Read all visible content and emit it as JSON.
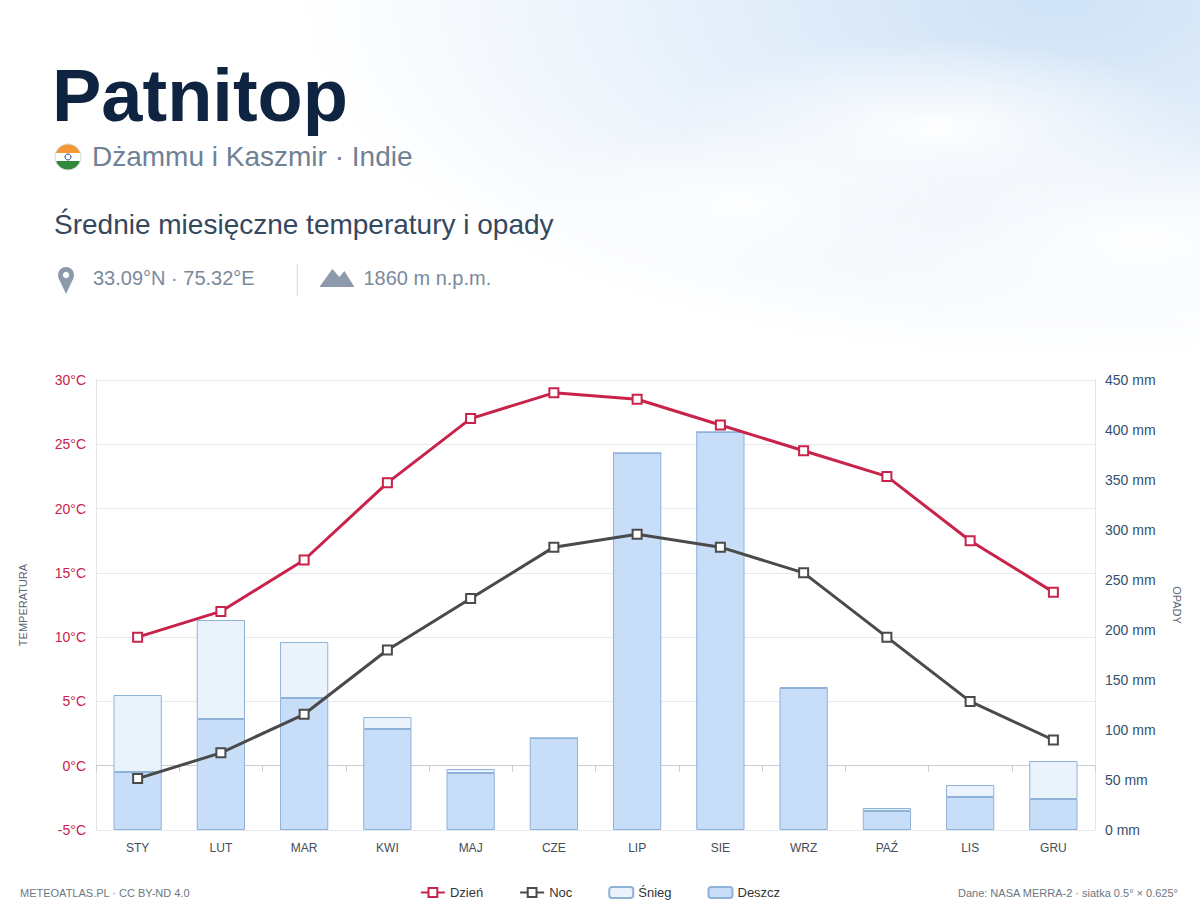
{
  "chart_data": {
    "type": "combo",
    "title": "Patnitop",
    "location": "Dżammu i Kaszmir · Indie",
    "subtitle": "Średnie miesięczne temperatury i opady",
    "coordinates": "33.09°N · 75.32°E",
    "elevation": "1860 m n.p.m.",
    "credit": "METEOATLAS.PL · CC BY-ND 4.0",
    "source": "Dane: NASA MERRA-2 · siatka 0.5° × 0.625°",
    "ylabel": "TEMPERATURA",
    "y2label": "OPADY",
    "categories": [
      "STY",
      "LUT",
      "MAR",
      "KWI",
      "MAJ",
      "CZE",
      "LIP",
      "SIE",
      "WRZ",
      "PAŹ",
      "LIS",
      "GRU"
    ],
    "series": [
      {
        "name": "Dzień",
        "type": "line",
        "color": "#c8234a",
        "marker": "square",
        "line_style": "solid",
        "values": [
          10,
          12,
          16,
          22,
          27,
          29,
          28.5,
          26.5,
          24.5,
          22.5,
          17.5,
          13.5
        ]
      },
      {
        "name": "Noc",
        "type": "line",
        "color": "#4a4a4a",
        "marker": "square",
        "line_style": "solid",
        "values": [
          -1,
          1,
          4,
          9,
          13,
          17,
          18,
          17,
          15,
          10,
          5,
          2
        ]
      },
      {
        "name": "Śnieg",
        "type": "bar",
        "axis": "y2",
        "color": "#eaf3fc",
        "values": [
          77,
          99,
          56,
          12,
          4,
          0,
          0,
          0,
          1,
          3,
          12,
          38
        ]
      },
      {
        "name": "Deszcz",
        "type": "bar",
        "axis": "y2",
        "color": "#c8ddf8",
        "values": [
          58,
          111,
          132,
          101,
          57,
          92,
          377,
          398,
          142,
          19,
          33,
          31
        ]
      }
    ],
    "ylim": [
      -5,
      30
    ],
    "yticks": [
      {
        "value": -5,
        "label": "-5°C"
      },
      {
        "value": 0,
        "label": "0°C"
      },
      {
        "value": 5,
        "label": "5°C"
      },
      {
        "value": 10,
        "label": "10°C"
      },
      {
        "value": 15,
        "label": "15°C"
      },
      {
        "value": 20,
        "label": "20°C"
      },
      {
        "value": 25,
        "label": "25°C"
      },
      {
        "value": 30,
        "label": "30°C"
      }
    ],
    "y2lim": [
      0,
      450
    ],
    "y2ticks": [
      {
        "value": 0,
        "label": "0 mm"
      },
      {
        "value": 50,
        "label": "50 mm"
      },
      {
        "value": 100,
        "label": "100 mm"
      },
      {
        "value": 150,
        "label": "150 mm"
      },
      {
        "value": 200,
        "label": "200 mm"
      },
      {
        "value": 250,
        "label": "250 mm"
      },
      {
        "value": 300,
        "label": "300 mm"
      },
      {
        "value": 350,
        "label": "350 mm"
      },
      {
        "value": 400,
        "label": "400 mm"
      },
      {
        "value": 450,
        "label": "450 mm"
      }
    ],
    "stacked": true,
    "grid": true,
    "legend": "bottom"
  }
}
